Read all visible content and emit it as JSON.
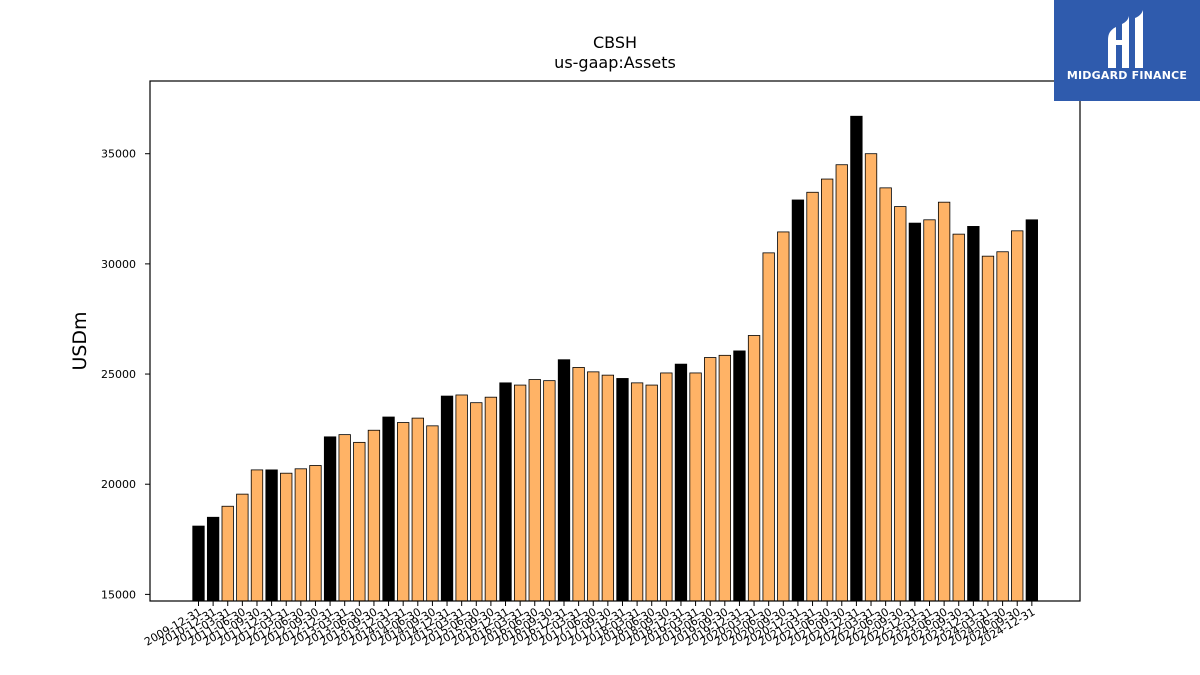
{
  "brand": {
    "name": "MIDGARD FINANCE",
    "bg_color": "#2f5bad"
  },
  "colors": {
    "q4_bar": "#000000",
    "quarter_bar": "#ffb366",
    "bar_edge": "#000000"
  },
  "chart_data": {
    "type": "bar",
    "title": "CBSH",
    "subtitle": "us-gaap:Assets",
    "xlabel": "",
    "ylabel": "USDm",
    "ylim": [
      14700,
      38300
    ],
    "yticks": [
      15000,
      20000,
      25000,
      30000,
      35000
    ],
    "grid": false,
    "categories": [
      "2009-12-31",
      "2010-12-31",
      "2011-03-31",
      "2011-06-30",
      "2011-09-30",
      "2011-12-31",
      "2012-03-31",
      "2012-06-30",
      "2012-09-30",
      "2012-12-31",
      "2013-03-31",
      "2013-06-30",
      "2013-09-30",
      "2013-12-31",
      "2014-03-31",
      "2014-06-30",
      "2014-09-30",
      "2014-12-31",
      "2015-03-31",
      "2015-06-30",
      "2015-09-30",
      "2015-12-31",
      "2016-03-31",
      "2016-06-30",
      "2016-09-30",
      "2016-12-31",
      "2017-03-31",
      "2017-06-30",
      "2017-09-30",
      "2017-12-31",
      "2018-03-31",
      "2018-06-30",
      "2018-09-30",
      "2018-12-31",
      "2019-03-31",
      "2019-06-30",
      "2019-09-30",
      "2019-12-31",
      "2020-03-31",
      "2020-06-30",
      "2020-09-30",
      "2020-12-31",
      "2021-03-31",
      "2021-06-30",
      "2021-09-30",
      "2021-12-31",
      "2022-03-31",
      "2022-06-30",
      "2022-09-30",
      "2022-12-31",
      "2023-03-31",
      "2023-06-30",
      "2023-09-30",
      "2023-12-31",
      "2024-03-31",
      "2024-06-30",
      "2024-09-30",
      "2024-12-31"
    ],
    "values": [
      18100,
      18500,
      19000,
      19550,
      20650,
      20650,
      20500,
      20700,
      20850,
      22150,
      22250,
      21900,
      22450,
      23050,
      22800,
      23000,
      22650,
      24000,
      24050,
      23700,
      23950,
      24600,
      24500,
      24750,
      24700,
      25650,
      25300,
      25100,
      24950,
      24800,
      24600,
      24500,
      25050,
      25450,
      25050,
      25750,
      25850,
      26050,
      26750,
      30500,
      31450,
      32900,
      33250,
      33850,
      34500,
      36700,
      35000,
      33450,
      32600,
      31850,
      32000,
      32800,
      31350,
      31700,
      30350,
      30550,
      31500,
      32000
    ]
  }
}
